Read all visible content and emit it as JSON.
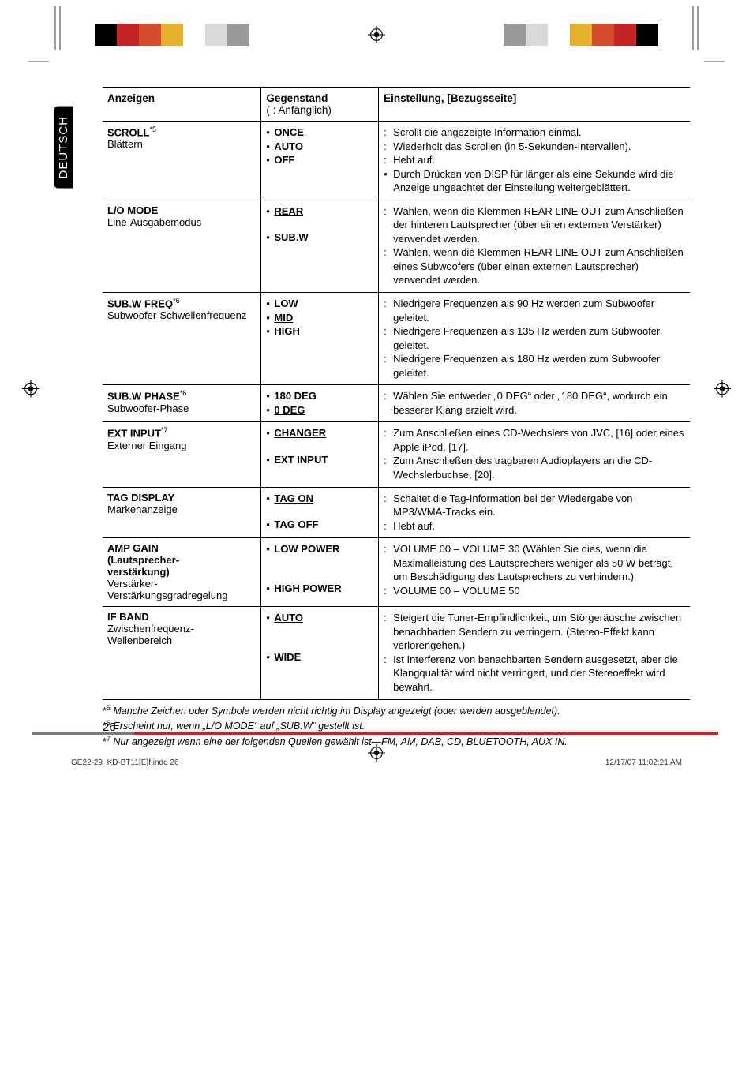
{
  "language_tab": "DEUTSCH",
  "headers": {
    "col1": "Anzeigen",
    "col2_line1": "Gegenstand",
    "col2_line2": "(      : Anfänglich)",
    "col3": "Einstellung, [Bezugsseite]"
  },
  "rows": [
    {
      "label": "SCROLL",
      "label_sup": "*5",
      "sublabel": "Blättern",
      "opts": [
        {
          "t": "ONCE",
          "b": true,
          "u": true
        },
        {
          "t": "AUTO",
          "b": true
        },
        {
          "t": "OFF",
          "b": true
        }
      ],
      "defs": [
        {
          "type": "colon",
          "t": "Scrollt die angezeigte Information einmal."
        },
        {
          "type": "colon",
          "t": "Wiederholt das Scrollen (in 5-Sekunden-Intervallen)."
        },
        {
          "type": "colon",
          "t": "Hebt auf."
        },
        {
          "type": "bullet",
          "t": "Durch Drücken von DISP für länger als eine Sekunde wird die Anzeige ungeachtet der Einstellung weitergeblättert."
        }
      ]
    },
    {
      "label": "L/O MODE",
      "sublabel": "Line-Ausgabemodus",
      "opts": [
        {
          "t": "REAR",
          "b": true,
          "u": true,
          "gap_after": true
        },
        {
          "t": "SUB.W",
          "b": true
        }
      ],
      "defs": [
        {
          "type": "colon",
          "t": "Wählen, wenn die Klemmen REAR LINE OUT zum Anschließen der hinteren Lautsprecher (über einen externen Verstärker) verwendet werden."
        },
        {
          "type": "colon",
          "t": "Wählen, wenn die Klemmen REAR LINE OUT zum Anschließen eines Subwoofers (über einen externen Lautsprecher) verwendet werden."
        }
      ]
    },
    {
      "label": "SUB.W FREQ",
      "label_sup": "*6",
      "sublabel": "Subwoofer-Schwellenfrequenz",
      "opts": [
        {
          "t": "LOW",
          "b": true
        },
        {
          "t": "MID",
          "b": true,
          "u": true
        },
        {
          "t": "HIGH",
          "b": true
        }
      ],
      "defs": [
        {
          "type": "colon",
          "t": "Niedrigere Frequenzen als 90 Hz werden zum Subwoofer geleitet."
        },
        {
          "type": "colon",
          "t": "Niedrigere Frequenzen als 135 Hz werden zum Subwoofer geleitet."
        },
        {
          "type": "colon",
          "t": "Niedrigere Frequenzen als 180 Hz werden zum Subwoofer geleitet."
        }
      ]
    },
    {
      "label": "SUB.W PHASE",
      "label_sup": "*6",
      "sublabel": "Subwoofer-Phase",
      "opts": [
        {
          "t": "180 DEG",
          "b": true
        },
        {
          "t": "0 DEG",
          "b": true,
          "u": true
        }
      ],
      "defs": [
        {
          "type": "colon",
          "t": "Wählen Sie entweder „0 DEG“ oder „180 DEG“, wodurch ein besserer Klang erzielt wird."
        }
      ]
    },
    {
      "label": "EXT INPUT",
      "label_sup": "*7",
      "sublabel": "Externer Eingang",
      "opts": [
        {
          "t": "CHANGER",
          "b": true,
          "u": true,
          "gap_after": true
        },
        {
          "t": "EXT INPUT",
          "b": true
        }
      ],
      "defs": [
        {
          "type": "colon",
          "t": "Zum Anschließen eines CD-Wechslers von JVC, [16] oder eines Apple iPod, [17]."
        },
        {
          "type": "colon",
          "t": "Zum Anschließen des tragbaren Audioplayers an die CD-Wechslerbuchse, [20]."
        }
      ]
    },
    {
      "label": "TAG DISPLAY",
      "sublabel": "Markenanzeige",
      "opts": [
        {
          "t": "TAG ON",
          "b": true,
          "u": true,
          "gap_after": true
        },
        {
          "t": "TAG OFF",
          "b": true
        }
      ],
      "defs": [
        {
          "type": "colon",
          "t": "Schaltet die Tag-Information bei der Wiedergabe von MP3/WMA-Tracks ein."
        },
        {
          "type": "colon",
          "t": "Hebt auf."
        }
      ]
    },
    {
      "label": "AMP GAIN",
      "sublabel_html": "<span class='b'>(Lautsprecher-<br>verstärkung)</span><br><span class='light-sub'>Verstärker-<br>Verstärkungsgradregelung</span>",
      "opts": [
        {
          "t": "LOW POWER",
          "b": true,
          "gap_after": true,
          "gap_after2": true
        },
        {
          "t": "HIGH POWER",
          "b": true,
          "u": true
        }
      ],
      "defs": [
        {
          "type": "colon",
          "t": "VOLUME 00 – VOLUME 30 (Wählen Sie dies, wenn die Maximalleistung des Lautsprechers weniger als 50 W beträgt, um Beschädigung des Lautsprechers zu verhindern.)"
        },
        {
          "type": "colon",
          "t": "VOLUME 00 – VOLUME 50"
        }
      ]
    },
    {
      "label": "IF BAND",
      "sublabel": "Zwischenfrequenz-Wellenbereich",
      "opts": [
        {
          "t": "AUTO",
          "b": true,
          "u": true,
          "gap_after": true,
          "gap_after2": true
        },
        {
          "t": "WIDE",
          "b": true
        }
      ],
      "defs": [
        {
          "type": "colon",
          "t": "Steigert die Tuner-Empfindlichkeit, um Störgeräusche zwischen benachbarten Sendern zu verringern. (Stereo-Effekt kann verlorengehen.)"
        },
        {
          "type": "colon",
          "t": "Ist Interferenz von benachbarten Sendern ausgesetzt, aber die Klangqualität wird nicht verringert, und der Stereoeffekt wird bewahrt."
        }
      ],
      "last": true
    }
  ],
  "footnotes": [
    {
      "mark": "*5",
      "t": "Manche Zeichen oder Symbole werden nicht richtig im Display angezeigt (oder werden ausgeblendet)."
    },
    {
      "mark": "*6",
      "t": "Erscheint nur, wenn „L/O MODE“ auf „SUB.W“ gestellt ist."
    },
    {
      "mark": "*7",
      "t": "Nur angezeigt wenn eine der folgenden Quellen gewählt ist—FM, AM, DAB, CD, BLUETOOTH, AUX IN."
    }
  ],
  "page_number": "26",
  "footer_left": "GE22-29_KD-BT11[E]f.indd   26",
  "footer_right": "12/17/07   11:02:21 AM",
  "colorbars_left": [
    "#000000",
    "#c42427",
    "#d24b2a",
    "#e6b12a",
    "#ffffff",
    "#d9d9d9",
    "#9a9a9a"
  ],
  "colorbars_right": [
    "#9a9a9a",
    "#d9d9d9",
    "#ffffff",
    "#e6b12a",
    "#d24b2a",
    "#c42427",
    "#000000"
  ],
  "reg_svg_fill": "#000"
}
